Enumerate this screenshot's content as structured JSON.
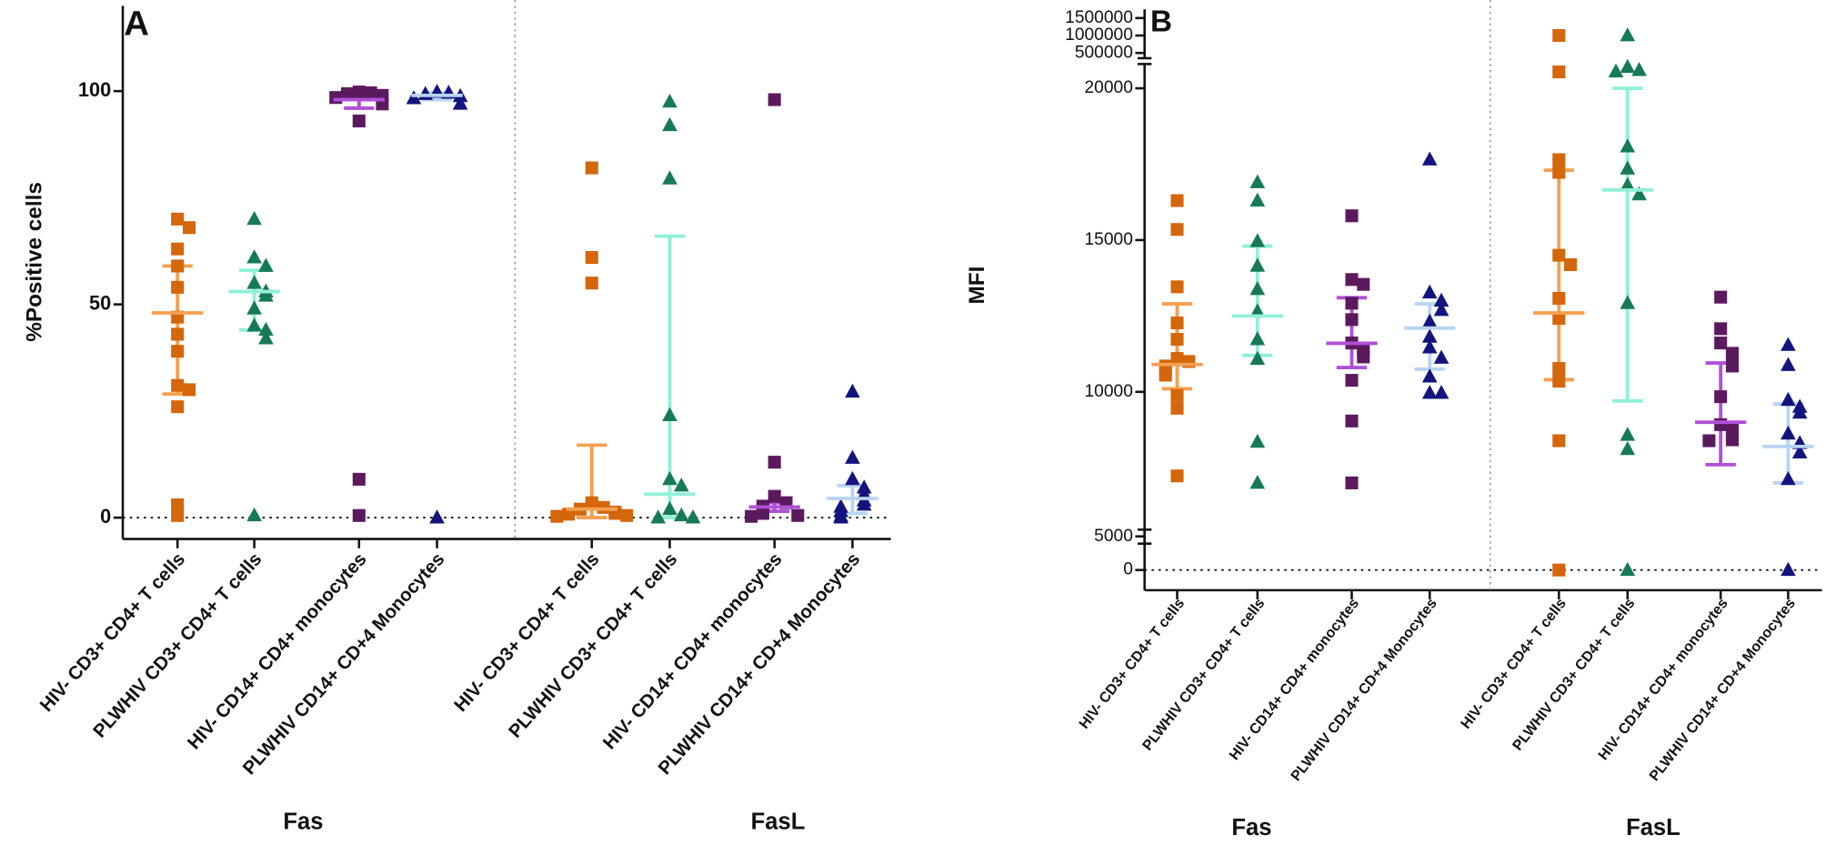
{
  "chart_data": [
    {
      "type": "dot",
      "panel": "A",
      "ylabel": "%Positive cells",
      "ylim": [
        -5,
        120
      ],
      "yticks": [
        0,
        50,
        100
      ],
      "groups": [
        {
          "label": "Fas",
          "categories": [
            "HIV- CD3+ CD4+ T cells",
            "PLWHIV CD3+ CD4+ T cells",
            "HIV- CD14+ CD4+ monocytes",
            "PLWHIV CD14+ CD+4 Monocytes"
          ],
          "colors": [
            "#d4660c",
            "#167a56",
            "#5c1a5e",
            "#14147e"
          ],
          "markers": [
            "square",
            "triangle",
            "square",
            "triangle"
          ],
          "bar_colors": [
            "#f5a050",
            "#90f0d8",
            "#b050d8",
            "#b8d4f4"
          ],
          "points": [
            [
              70,
              68,
              63,
              59,
              54,
              47,
              43,
              39,
              31,
              30,
              26,
              3,
              0.5
            ],
            [
              70,
              61,
              59,
              55,
              53,
              52,
              49,
              45,
              44,
              42,
              0.5
            ],
            [
              99.8,
              99.6,
              99.4,
              99,
              98.5,
              97,
              93,
              9,
              0.5
            ],
            [
              99.8,
              99.6,
              99.3,
              98.8,
              98.3,
              97,
              0
            ]
          ],
          "centers": [
            48,
            53,
            98,
            99
          ],
          "error_low": [
            29,
            44,
            96,
            98
          ],
          "error_high": [
            59,
            58,
            99.5,
            99.6
          ]
        },
        {
          "label": "FasL",
          "categories": [
            "HIV- CD3+ CD4+ T cells",
            "PLWHIV CD3+ CD4+ T cells",
            "HIV- CD14+ CD4+ monocytes",
            "PLWHIV CD14+ CD+4 Monocytes"
          ],
          "colors": [
            "#d4660c",
            "#167a56",
            "#5c1a5e",
            "#14147e"
          ],
          "markers": [
            "square",
            "triangle",
            "square",
            "triangle"
          ],
          "bar_colors": [
            "#f5a050",
            "#90f0d8",
            "#b050d8",
            "#b8d4f4"
          ],
          "points": [
            [
              82,
              61,
              55,
              3.5,
              2.4,
              2,
              1.3,
              1,
              0.8,
              0.5,
              0.3
            ],
            [
              97.5,
              92,
              79.5,
              24,
              9,
              7.5,
              2,
              0.5,
              0,
              0
            ],
            [
              98,
              13,
              5,
              3.5,
              2.7,
              2,
              1,
              0.5,
              0.3
            ],
            [
              29.5,
              14,
              9,
              7,
              5.5,
              4,
              3,
              2.5,
              1.5,
              0.3,
              0
            ]
          ],
          "centers": [
            2,
            5.5,
            2.5,
            4.5
          ],
          "error_low": [
            0,
            0,
            1.5,
            1
          ],
          "error_high": [
            17,
            66,
            3.5,
            7.5
          ]
        }
      ]
    },
    {
      "type": "dot",
      "panel": "B",
      "ylabel": "MFI",
      "y_segments": [
        {
          "ylim": [
            -3000,
            6000
          ],
          "yticks": [
            0,
            5000
          ]
        },
        {
          "ylim": [
            5000,
            20800
          ],
          "yticks": [
            10000,
            15000,
            20000
          ]
        },
        {
          "ylim": [
            350000,
            1750000
          ],
          "yticks": [
            500000,
            1000000,
            1500000
          ]
        }
      ],
      "groups": [
        {
          "label": "Fas",
          "categories": [
            "HIV- CD3+ CD4+ T cells",
            "PLWHIV CD3+ CD4+ T cells",
            "HIV- CD14+ CD4+ monocytes",
            "PLWHIV CD14+ CD+4 Monocytes"
          ],
          "colors": [
            "#d4660c",
            "#167a56",
            "#5c1a5e",
            "#14147e"
          ],
          "markers": [
            "square",
            "triangle",
            "square",
            "triangle"
          ],
          "bar_colors": [
            "#f5a050",
            "#90f0d8",
            "#b050d8",
            "#b8d4f4"
          ],
          "points": [
            [
              16300,
              15350,
              13460,
              12270,
              11730,
              11100,
              11000,
              10850,
              10700,
              10550,
              9880,
              9460,
              7230
            ],
            [
              16900,
              16300,
              14960,
              14150,
              13380,
              12650,
              11730,
              11080,
              8350,
              7000
            ],
            [
              15800,
              13700,
              13540,
              12920,
              12380,
              11610,
              11380,
              11150,
              10380,
              9040,
              7000
            ],
            [
              17650,
              13270,
              13000,
              12690,
              12310,
              11810,
              11460,
              11120,
              10500,
              9960,
              9960
            ]
          ],
          "centers": [
            10900,
            12500,
            11600,
            12100
          ],
          "error_low": [
            10100,
            11200,
            10800,
            10750
          ],
          "error_high": [
            12900,
            14800,
            13100,
            12900
          ]
        },
        {
          "label": "FasL",
          "categories": [
            "HIV- CD3+ CD4+ T cells",
            "PLWHIV CD3+ CD4+ T cells",
            "HIV- CD14+ CD4+ monocytes",
            "PLWHIV CD14+ CD+4 Monocytes"
          ],
          "colors": [
            "#d4660c",
            "#167a56",
            "#5c1a5e",
            "#14147e"
          ],
          "markers": [
            "square",
            "triangle",
            "square",
            "triangle"
          ],
          "bar_colors": [
            "#f5a050",
            "#90f0d8",
            "#b050d8",
            "#b8d4f4"
          ],
          "points": [
            [
              1000000,
              20540,
              17650,
              17230,
              14500,
              14190,
              13080,
              12420,
              10770,
              10350,
              8390,
              0
            ],
            [
              1000000,
              20700,
              20600,
              20550,
              18080,
              17350,
              16810,
              16500,
              12920,
              8580,
              8110,
              0
            ],
            [
              13120,
              12080,
              11610,
              11270,
              11150,
              10850,
              9840,
              8920,
              8770,
              8460,
              8420,
              8390
            ],
            [
              11540,
              10880,
              9730,
              9500,
              9310,
              8620,
              8310,
              8000,
              7120,
              0
            ]
          ],
          "centers": [
            12600,
            16650,
            9000,
            8200
          ],
          "error_low": [
            10400,
            9700,
            7600,
            7000
          ],
          "error_high": [
            17300,
            20000,
            10950,
            9600
          ]
        }
      ]
    }
  ]
}
